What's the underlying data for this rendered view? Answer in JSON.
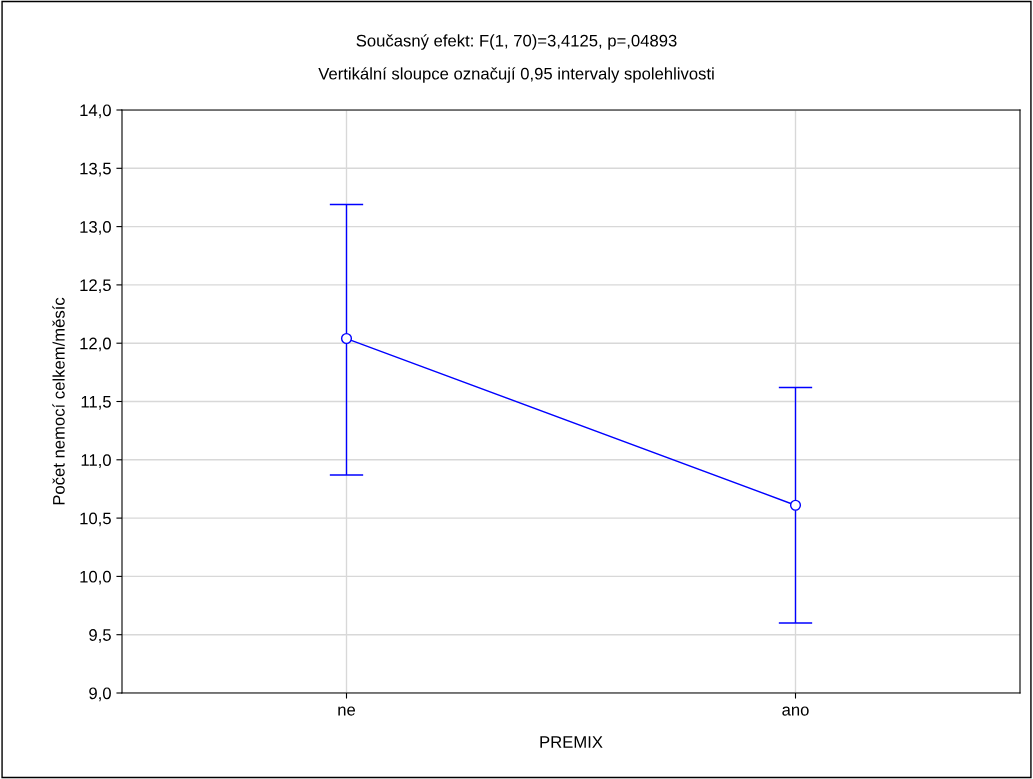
{
  "chart_data": {
    "type": "line",
    "title": "Současný efekt: F(1, 70)=3,4125, p=,04893",
    "subtitle": "Vertikální sloupce označují 0,95 intervaly spolehlivosti",
    "xlabel": "PREMIX",
    "ylabel": "Počet nemocí celkem/měsíc",
    "categories": [
      "ne",
      "ano"
    ],
    "series": [
      {
        "color": "#0000ff",
        "values": [
          12.04,
          10.61
        ],
        "errors": [
          [
            10.87,
            13.19
          ],
          [
            9.6,
            11.62
          ]
        ]
      }
    ],
    "ylim": [
      9.0,
      14.0
    ],
    "yticks": [
      {
        "value": 9.0,
        "label": "9,0"
      },
      {
        "value": 9.5,
        "label": "9,5"
      },
      {
        "value": 10.0,
        "label": "10,0"
      },
      {
        "value": 10.5,
        "label": "10,5"
      },
      {
        "value": 11.0,
        "label": "11,0"
      },
      {
        "value": 11.5,
        "label": "11,5"
      },
      {
        "value": 12.0,
        "label": "12,0"
      },
      {
        "value": 12.5,
        "label": "12,5"
      },
      {
        "value": 13.0,
        "label": "13,0"
      },
      {
        "value": 13.5,
        "label": "13,5"
      },
      {
        "value": 14.0,
        "label": "14,0"
      }
    ],
    "grid": true,
    "marker": "circle",
    "line_style": "solid",
    "legend": false
  }
}
